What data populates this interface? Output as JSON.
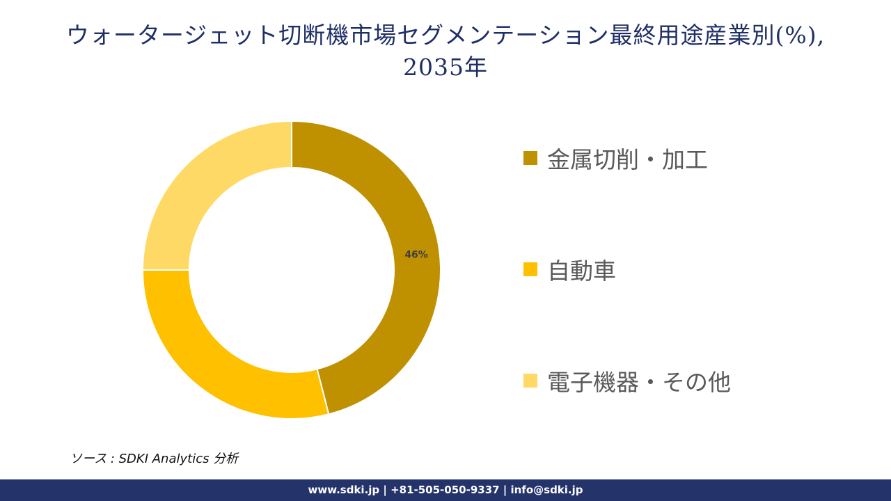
{
  "title": {
    "line1": "ウォータージェット切断機市場セグメンテーション最終用途産業別(%),",
    "line2": "2035年"
  },
  "chart_data": {
    "type": "pie",
    "subtype": "donut",
    "title": "ウォータージェット切断機市場セグメンテーション最終用途産業別(%), 2035年",
    "categories": [
      "金属切削・加工",
      "自動車",
      "電子機器・その他"
    ],
    "values": [
      46,
      29,
      25
    ],
    "colors": [
      "#bf9000",
      "#ffc000",
      "#ffd966"
    ],
    "data_labels": [
      "46%",
      "",
      ""
    ],
    "legend_position": "right",
    "start_angle": 0,
    "direction": "clockwise",
    "center": [
      419,
      388
    ],
    "outer_radius": 214,
    "inner_radius": 147
  },
  "legend": {
    "items": [
      {
        "label": "金属切削・加工",
        "color": "#bf9000"
      },
      {
        "label": "自動車",
        "color": "#ffc000"
      },
      {
        "label": "電子機器・その他",
        "color": "#ffd966"
      }
    ]
  },
  "source": "ソース : SDKI Analytics 分析",
  "footer": "www.sdki.jp | +81-505-050-9337 | info@sdki.jp"
}
